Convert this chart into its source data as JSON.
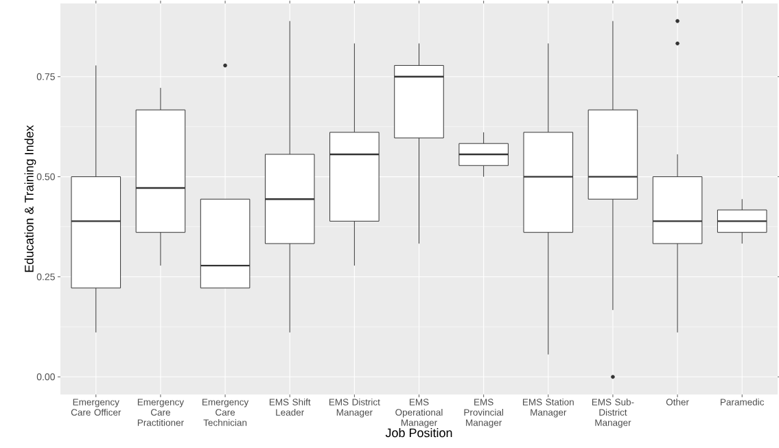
{
  "chart_data": {
    "type": "box",
    "xlabel": "Job Position",
    "ylabel": "Education & Training Index",
    "categories": [
      "Emergency Care Officer",
      "Emergency Care Practitioner",
      "Emergency Care Technician",
      "EMS Shift Leader",
      "EMS District Manager",
      "EMS Operational Manager",
      "EMS Provincial Manager",
      "EMS Station Manager",
      "EMS Sub-District Manager",
      "Other",
      "Paramedic"
    ],
    "boxes": [
      {
        "low": 0.111,
        "q1": 0.222,
        "median": 0.389,
        "q3": 0.5,
        "high": 0.778
      },
      {
        "low": 0.278,
        "q1": 0.361,
        "median": 0.472,
        "q3": 0.667,
        "high": 0.722
      },
      {
        "low": 0.222,
        "q1": 0.222,
        "median": 0.278,
        "q3": 0.444,
        "high": 0.444,
        "outliers": [
          0.778
        ]
      },
      {
        "low": 0.111,
        "q1": 0.333,
        "median": 0.444,
        "q3": 0.556,
        "high": 0.889
      },
      {
        "low": 0.278,
        "q1": 0.389,
        "median": 0.556,
        "q3": 0.611,
        "high": 0.833
      },
      {
        "low": 0.333,
        "q1": 0.597,
        "median": 0.75,
        "q3": 0.778,
        "high": 0.833
      },
      {
        "low": 0.5,
        "q1": 0.528,
        "median": 0.556,
        "q3": 0.583,
        "high": 0.611
      },
      {
        "low": 0.056,
        "q1": 0.361,
        "median": 0.5,
        "q3": 0.611,
        "high": 0.833
      },
      {
        "low": 0.167,
        "q1": 0.444,
        "median": 0.5,
        "q3": 0.667,
        "high": 0.889,
        "outliers": [
          0.0
        ]
      },
      {
        "low": 0.111,
        "q1": 0.333,
        "median": 0.389,
        "q3": 0.5,
        "high": 0.556,
        "outliers": [
          0.833,
          0.889
        ]
      },
      {
        "low": 0.333,
        "q1": 0.361,
        "median": 0.389,
        "q3": 0.417,
        "high": 0.444
      }
    ],
    "ylim": [
      -0.044,
      0.933
    ],
    "yticks": [
      {
        "value": 0,
        "label": "0.00"
      },
      {
        "value": 0.25,
        "label": "0.25"
      },
      {
        "value": 0.5,
        "label": "0.50"
      },
      {
        "value": 0.75,
        "label": "0.75"
      }
    ],
    "grid": true
  }
}
